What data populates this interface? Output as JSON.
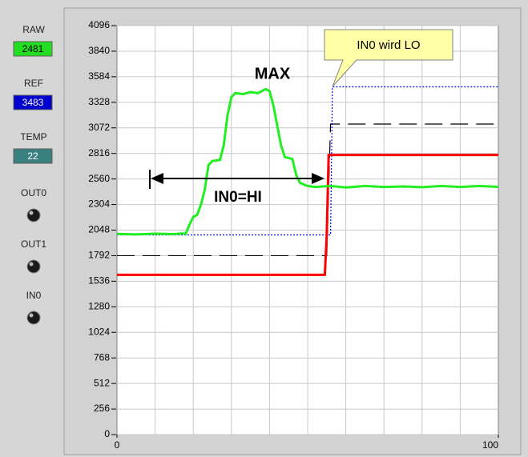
{
  "panel": {
    "displays": [
      {
        "label": "RAW",
        "value": 2481,
        "color": "#22dd22",
        "text_color": "#000000"
      },
      {
        "label": "REF",
        "value": 3483,
        "color": "#0000cc",
        "text_color": "#ffffff"
      },
      {
        "label": "TEMP",
        "value": 22,
        "color": "#3a8080",
        "text_color": "#ffffff"
      }
    ],
    "leds": [
      "OUT0",
      "OUT1",
      "IN0"
    ]
  },
  "chart_data": {
    "type": "line",
    "xlim": [
      0,
      100
    ],
    "xticks": [
      0,
      100
    ],
    "x_grid_lines": [
      10,
      20,
      30,
      40,
      50,
      60,
      70,
      80,
      90
    ],
    "ylim": [
      0,
      4096
    ],
    "yticks": [
      0,
      256,
      512,
      768,
      1024,
      1280,
      1536,
      1792,
      2048,
      2304,
      2560,
      2816,
      3072,
      3328,
      3584,
      3840,
      4096
    ],
    "grid": true,
    "series": [
      {
        "color": "#000000",
        "dash": "dashed",
        "width": 1.2,
        "x": [
          0,
          55,
          56,
          100
        ],
        "values": [
          1792,
          1792,
          3110,
          3110
        ]
      },
      {
        "color": "#0000ff",
        "dash": "dotted",
        "width": 1.2,
        "x": [
          0,
          56,
          56.5,
          100
        ],
        "values": [
          2000,
          2000,
          3483,
          3483
        ]
      },
      {
        "color": "#ff0000",
        "dash": "solid",
        "width": 3,
        "x": [
          0,
          54.5,
          55,
          55.5,
          100
        ],
        "values": [
          1600,
          1600,
          2000,
          2800,
          2800
        ]
      },
      {
        "color": "#22ee22",
        "dash": "solid",
        "width": 3,
        "x": [
          0,
          5,
          10,
          15,
          17,
          18,
          19,
          20,
          21,
          22,
          23,
          24,
          25,
          27,
          28,
          29,
          30,
          31,
          33,
          35,
          37,
          39,
          40,
          41,
          42,
          43,
          44,
          46,
          47,
          48,
          50,
          52,
          54,
          56,
          60,
          65,
          70,
          75,
          80,
          85,
          90,
          95,
          100
        ],
        "values": [
          2010,
          2005,
          2012,
          2008,
          2015,
          2010,
          2100,
          2180,
          2200,
          2300,
          2450,
          2700,
          2740,
          2750,
          2900,
          3200,
          3380,
          3420,
          3410,
          3430,
          3420,
          3460,
          3440,
          3300,
          3100,
          2900,
          2780,
          2760,
          2600,
          2520,
          2490,
          2480,
          2485,
          2490,
          2475,
          2490,
          2480,
          2485,
          2478,
          2490,
          2480,
          2490,
          2481
        ]
      }
    ],
    "annotations": [
      {
        "text": "MAX"
      },
      {
        "text": "IN0=HI"
      },
      {
        "text": "IN0 wird LO"
      }
    ]
  }
}
